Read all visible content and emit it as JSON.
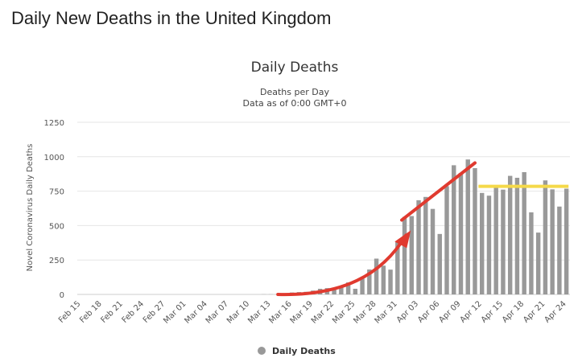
{
  "page": {
    "title": "Daily New Deaths in the United Kingdom"
  },
  "chart_data": {
    "type": "bar",
    "title": "Daily Deaths",
    "subtitle": "Deaths per Day",
    "subtitle2": "Data as of 0:00 GMT+0",
    "ylabel": "Novel Coronavirus Daily Deaths",
    "xlabel": "",
    "ylim": [
      0,
      1250
    ],
    "yticks": [
      0,
      250,
      500,
      750,
      1000,
      1250
    ],
    "grid": true,
    "legend": {
      "position": "bottom-center",
      "entries": [
        "Daily Deaths"
      ]
    },
    "series": [
      {
        "name": "Daily Deaths",
        "color": "#999999",
        "categories": [
          "Feb 15",
          "Feb 16",
          "Feb 17",
          "Feb 18",
          "Feb 19",
          "Feb 20",
          "Feb 21",
          "Feb 22",
          "Feb 23",
          "Feb 24",
          "Feb 25",
          "Feb 26",
          "Feb 27",
          "Feb 28",
          "Feb 29",
          "Mar 01",
          "Mar 02",
          "Mar 03",
          "Mar 04",
          "Mar 05",
          "Mar 06",
          "Mar 07",
          "Mar 08",
          "Mar 09",
          "Mar 10",
          "Mar 11",
          "Mar 12",
          "Mar 13",
          "Mar 14",
          "Mar 15",
          "Mar 16",
          "Mar 17",
          "Mar 18",
          "Mar 19",
          "Mar 20",
          "Mar 21",
          "Mar 22",
          "Mar 23",
          "Mar 24",
          "Mar 25",
          "Mar 26",
          "Mar 27",
          "Mar 28",
          "Mar 29",
          "Mar 30",
          "Mar 31",
          "Apr 01",
          "Apr 02",
          "Apr 03",
          "Apr 04",
          "Apr 05",
          "Apr 06",
          "Apr 07",
          "Apr 08",
          "Apr 09",
          "Apr 10",
          "Apr 11",
          "Apr 12",
          "Apr 13",
          "Apr 14",
          "Apr 15",
          "Apr 16",
          "Apr 17",
          "Apr 18",
          "Apr 19",
          "Apr 20",
          "Apr 21",
          "Apr 22",
          "Apr 23",
          "Apr 24"
        ],
        "values": [
          0,
          0,
          0,
          0,
          0,
          0,
          0,
          0,
          0,
          0,
          0,
          0,
          0,
          0,
          0,
          0,
          0,
          0,
          0,
          0,
          0,
          0,
          0,
          0,
          0,
          0,
          1,
          1,
          2,
          1,
          14,
          17,
          19,
          28,
          41,
          46,
          50,
          55,
          87,
          41,
          115,
          181,
          260,
          209,
          180,
          381,
          563,
          569,
          684,
          708,
          621,
          439,
          786,
          938,
          881,
          980,
          917,
          737,
          717,
          778,
          761,
          861,
          847,
          888,
          596,
          449,
          828,
          763,
          638,
          768
        ]
      }
    ],
    "xtick_labels": [
      "Feb 15",
      "Feb 18",
      "Feb 21",
      "Feb 24",
      "Feb 27",
      "Mar 01",
      "Mar 04",
      "Mar 07",
      "Mar 10",
      "Mar 13",
      "Mar 16",
      "Mar 19",
      "Mar 22",
      "Mar 25",
      "Mar 28",
      "Mar 31",
      "Apr 03",
      "Apr 06",
      "Apr 09",
      "Apr 12",
      "Apr 15",
      "Apr 18",
      "Apr 21",
      "Apr 24"
    ],
    "annotations": [
      {
        "type": "arrow",
        "color": "#e03a2f",
        "description": "red curved arrow tracing the rising trend from mid-March to early April"
      },
      {
        "type": "horizontal-line",
        "color": "#f5d94a",
        "value": 785,
        "from": "Apr 12",
        "to": "Apr 24",
        "description": "yellow plateau level line"
      }
    ]
  }
}
